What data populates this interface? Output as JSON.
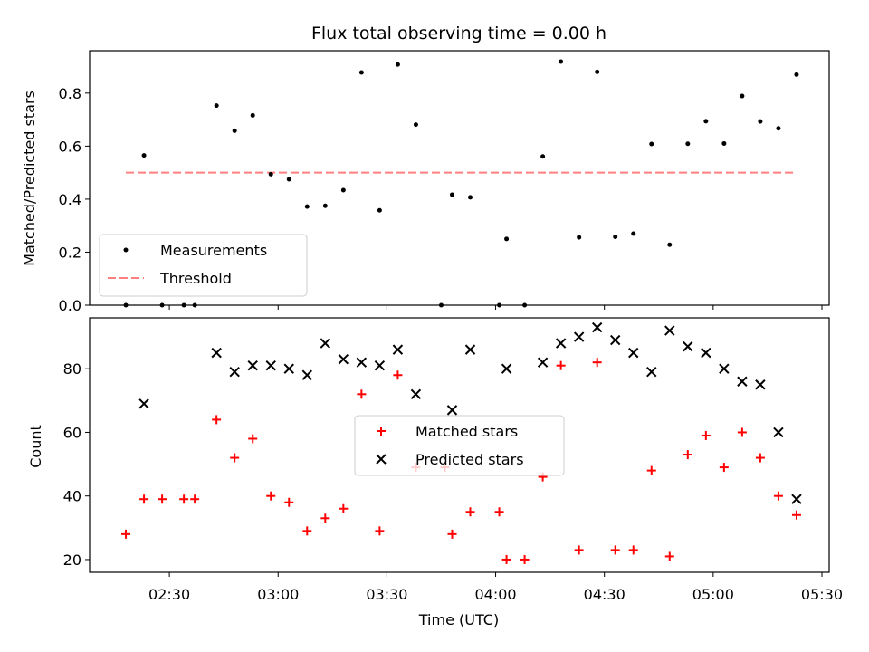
{
  "chart_data": [
    {
      "type": "scatter",
      "title": "Flux total observing time = 0.00 h",
      "xlabel": "",
      "ylabel": "Matched/Predicted stars",
      "xlim": [
        "02:08",
        "05:32"
      ],
      "ylim": [
        0,
        0.96
      ],
      "yticks": [
        0.0,
        0.2,
        0.4,
        0.6,
        0.8
      ],
      "ytick_labels": [
        "0.0",
        "0.2",
        "0.4",
        "0.6",
        "0.8"
      ],
      "legend_position": "lower-left",
      "series": [
        {
          "name": "Measurements",
          "marker": "dot",
          "color": "#000000",
          "points": [
            [
              "02:18",
              0.0
            ],
            [
              "02:23",
              0.565
            ],
            [
              "02:28",
              0.0
            ],
            [
              "02:34",
              0.0
            ],
            [
              "02:37",
              0.0
            ],
            [
              "02:43",
              0.753
            ],
            [
              "02:48",
              0.658
            ],
            [
              "02:53",
              0.716
            ],
            [
              "02:58",
              0.494
            ],
            [
              "03:03",
              0.475
            ],
            [
              "03:08",
              0.372
            ],
            [
              "03:13",
              0.375
            ],
            [
              "03:18",
              0.434
            ],
            [
              "03:23",
              0.878
            ],
            [
              "03:28",
              0.358
            ],
            [
              "03:33",
              0.908
            ],
            [
              "03:38",
              0.681
            ],
            [
              "03:45",
              0.0
            ],
            [
              "03:48",
              0.417
            ],
            [
              "03:53",
              0.407
            ],
            [
              "04:01",
              0.0
            ],
            [
              "04:03",
              0.25
            ],
            [
              "04:08",
              0.0
            ],
            [
              "04:13",
              0.561
            ],
            [
              "04:18",
              0.919
            ],
            [
              "04:23",
              0.256
            ],
            [
              "04:28",
              0.88
            ],
            [
              "04:33",
              0.258
            ],
            [
              "04:38",
              0.27
            ],
            [
              "04:43",
              0.608
            ],
            [
              "04:48",
              0.228
            ],
            [
              "04:53",
              0.609
            ],
            [
              "04:58",
              0.694
            ],
            [
              "05:03",
              0.61
            ],
            [
              "05:08",
              0.789
            ],
            [
              "05:13",
              0.693
            ],
            [
              "05:18",
              0.667
            ],
            [
              "05:23",
              0.87
            ]
          ]
        },
        {
          "name": "Threshold",
          "type": "line",
          "style": "dashed",
          "color": "#ff7f7f",
          "x": [
            "02:18",
            "05:23"
          ],
          "y": [
            0.5,
            0.5
          ]
        }
      ]
    },
    {
      "type": "scatter",
      "title": "",
      "xlabel": "Time (UTC)",
      "ylabel": "Count",
      "xlim": [
        "02:08",
        "05:32"
      ],
      "ylim": [
        16,
        96
      ],
      "yticks": [
        20,
        40,
        60,
        80
      ],
      "ytick_labels": [
        "20",
        "40",
        "60",
        "80"
      ],
      "xticks": [
        "02:30",
        "03:00",
        "03:30",
        "04:00",
        "04:30",
        "05:00",
        "05:30"
      ],
      "xtick_labels": [
        "02:30",
        "03:00",
        "03:30",
        "04:00",
        "04:30",
        "05:00",
        "05:30"
      ],
      "legend_position": "center",
      "series": [
        {
          "name": "Matched stars",
          "marker": "plus",
          "color": "#ff0000",
          "points": [
            [
              "02:18",
              28
            ],
            [
              "02:23",
              39
            ],
            [
              "02:28",
              39
            ],
            [
              "02:34",
              39
            ],
            [
              "02:37",
              39
            ],
            [
              "02:43",
              64
            ],
            [
              "02:48",
              52
            ],
            [
              "02:53",
              58
            ],
            [
              "02:58",
              40
            ],
            [
              "03:03",
              38
            ],
            [
              "03:08",
              29
            ],
            [
              "03:13",
              33
            ],
            [
              "03:18",
              36
            ],
            [
              "03:23",
              72
            ],
            [
              "03:28",
              29
            ],
            [
              "03:33",
              78
            ],
            [
              "03:38",
              49
            ],
            [
              "03:46",
              49
            ],
            [
              "03:48",
              28
            ],
            [
              "03:53",
              35
            ],
            [
              "04:01",
              35
            ],
            [
              "04:03",
              20
            ],
            [
              "04:08",
              20
            ],
            [
              "04:13",
              46
            ],
            [
              "04:18",
              81
            ],
            [
              "04:23",
              23
            ],
            [
              "04:28",
              82
            ],
            [
              "04:33",
              23
            ],
            [
              "04:38",
              23
            ],
            [
              "04:43",
              48
            ],
            [
              "04:48",
              21
            ],
            [
              "04:53",
              53
            ],
            [
              "04:58",
              59
            ],
            [
              "05:03",
              49
            ],
            [
              "05:08",
              60
            ],
            [
              "05:13",
              52
            ],
            [
              "05:18",
              40
            ],
            [
              "05:23",
              34
            ]
          ]
        },
        {
          "name": "Predicted stars",
          "marker": "x",
          "color": "#000000",
          "points": [
            [
              "02:23",
              69
            ],
            [
              "02:43",
              85
            ],
            [
              "02:48",
              79
            ],
            [
              "02:53",
              81
            ],
            [
              "02:58",
              81
            ],
            [
              "03:03",
              80
            ],
            [
              "03:08",
              78
            ],
            [
              "03:13",
              88
            ],
            [
              "03:18",
              83
            ],
            [
              "03:23",
              82
            ],
            [
              "03:28",
              81
            ],
            [
              "03:33",
              86
            ],
            [
              "03:38",
              72
            ],
            [
              "03:48",
              67
            ],
            [
              "03:53",
              86
            ],
            [
              "04:03",
              80
            ],
            [
              "04:13",
              82
            ],
            [
              "04:18",
              88
            ],
            [
              "04:23",
              90
            ],
            [
              "04:28",
              93
            ],
            [
              "04:33",
              89
            ],
            [
              "04:38",
              85
            ],
            [
              "04:43",
              79
            ],
            [
              "04:48",
              92
            ],
            [
              "04:53",
              87
            ],
            [
              "04:58",
              85
            ],
            [
              "05:03",
              80
            ],
            [
              "05:08",
              76
            ],
            [
              "05:13",
              75
            ],
            [
              "05:18",
              60
            ],
            [
              "05:23",
              39
            ]
          ]
        }
      ]
    }
  ]
}
